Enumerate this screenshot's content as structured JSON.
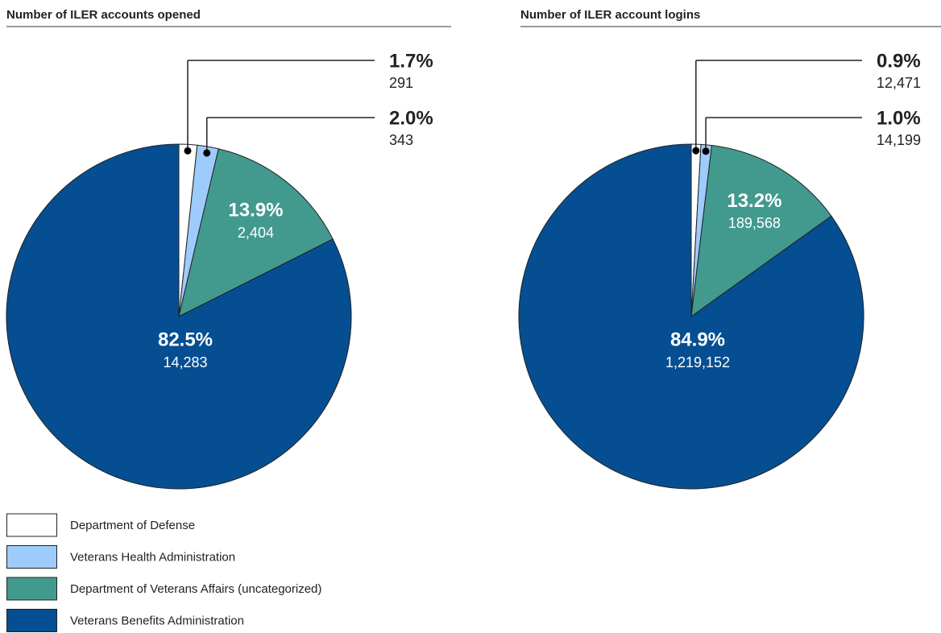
{
  "legend": {
    "labels": [
      "Department of Defense",
      "Veterans Health Administration",
      "Department of Veterans Affairs (uncategorized)",
      "Veterans Benefits Administration"
    ],
    "colors": [
      "#ffffff",
      "#9dcbfb",
      "#429a8f",
      "#054e92"
    ]
  },
  "chart_data": [
    {
      "type": "pie",
      "title": "Number of ILER accounts opened",
      "values": [
        1.7,
        2.0,
        13.9,
        82.5
      ],
      "value_labels": [
        "1.7%",
        "2.0%",
        "13.9%",
        "82.5%"
      ],
      "counts": [
        291,
        343,
        2404,
        14283
      ],
      "count_labels": [
        "291",
        "343",
        "2,404",
        "14,283"
      ]
    },
    {
      "type": "pie",
      "title": "Number of ILER account logins",
      "values": [
        0.9,
        1.0,
        13.2,
        84.9
      ],
      "value_labels": [
        "0.9%",
        "1.0%",
        "13.2%",
        "84.9%"
      ],
      "counts": [
        12471,
        14199,
        189568,
        1219152
      ],
      "count_labels": [
        "12,471",
        "14,199",
        "189,568",
        "1,219,152"
      ]
    }
  ]
}
